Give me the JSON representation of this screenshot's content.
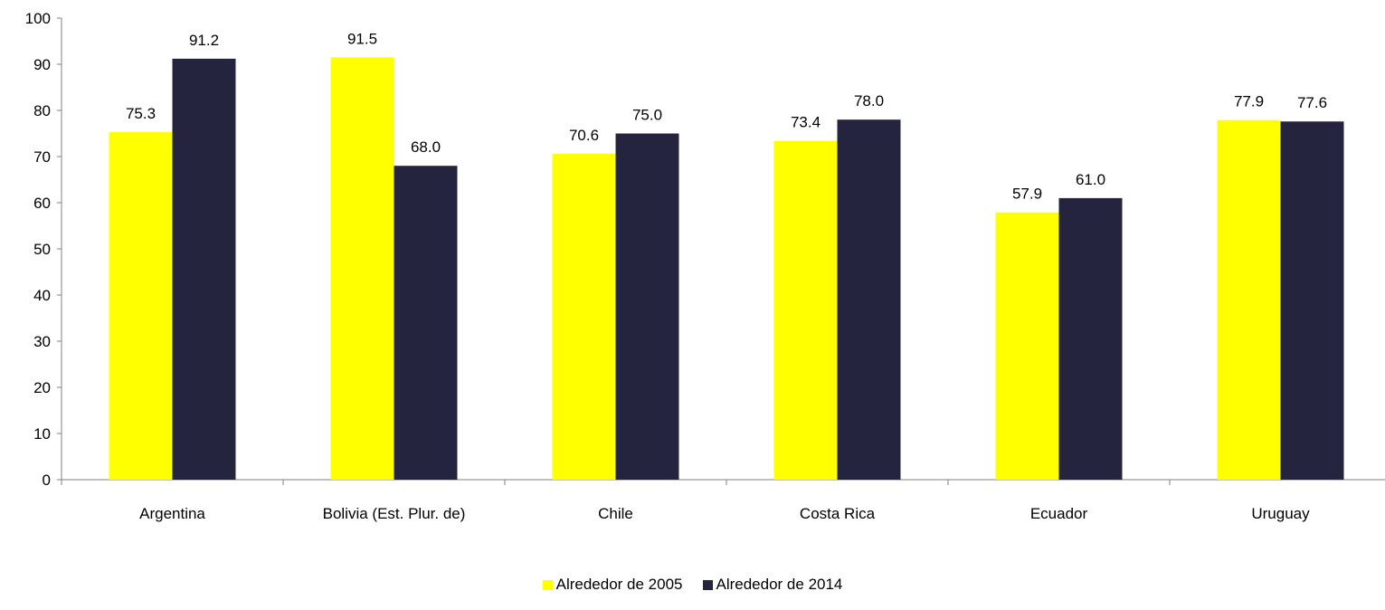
{
  "chart_data": {
    "type": "bar",
    "categories": [
      "Argentina",
      "Bolivia (Est. Plur. de)",
      "Chile",
      "Costa Rica",
      "Ecuador",
      "Uruguay"
    ],
    "series": [
      {
        "name": "Alrededor de 2005",
        "color": "#ffff00",
        "values": [
          75.3,
          91.5,
          70.6,
          73.4,
          57.9,
          77.9
        ],
        "labels": [
          "75.3",
          "91.5",
          "70.6",
          "73.4",
          "57.9",
          "77.9"
        ]
      },
      {
        "name": "Alrededor de 2014",
        "color": "#25243f",
        "values": [
          91.2,
          68.0,
          75.0,
          78.0,
          61.0,
          77.6
        ],
        "labels": [
          "91.2",
          "68.0",
          "75.0",
          "78.0",
          "61.0",
          "77.6"
        ]
      }
    ],
    "ylim": [
      0,
      100
    ],
    "yticks": [
      "0",
      "10",
      "20",
      "30",
      "40",
      "50",
      "60",
      "70",
      "80",
      "90",
      "100"
    ],
    "title": "",
    "xlabel": "",
    "ylabel": "",
    "grid": false,
    "legend_position": "bottom-center"
  }
}
